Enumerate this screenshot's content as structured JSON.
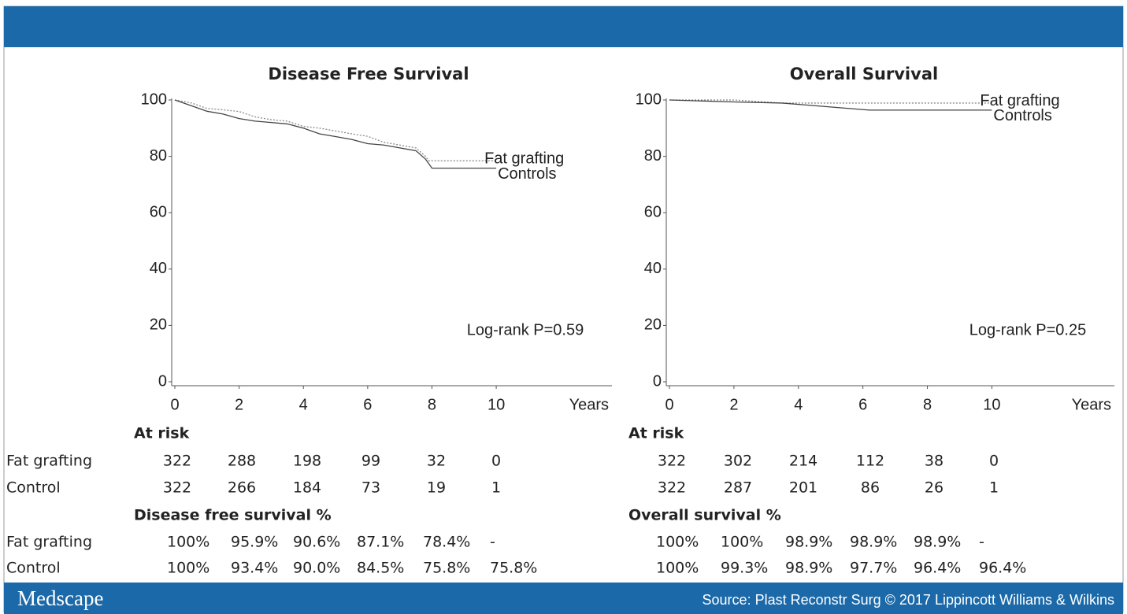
{
  "chart_data": [
    {
      "type": "line",
      "title": "Disease Free Survival",
      "xlabel": "Years",
      "xlim": [
        0,
        13.6
      ],
      "xticks": [
        0,
        2,
        4,
        6,
        8,
        10
      ],
      "ylim": [
        0,
        100
      ],
      "yticks": [
        0,
        20,
        40,
        60,
        80,
        100
      ],
      "annotation": "Log-rank  P=0.59",
      "series": [
        {
          "name": "Fat grafting",
          "color": "#8a8a8a",
          "style": "dotted",
          "x": [
            0,
            0.5,
            1,
            1.5,
            2,
            2.5,
            3,
            3.5,
            4,
            4.5,
            5,
            5.5,
            6,
            6.5,
            7,
            7.5,
            7.8,
            7.9,
            10
          ],
          "values": [
            100,
            99,
            97,
            96.5,
            95.9,
            94,
            93,
            92.5,
            90.6,
            90,
            89,
            88,
            87.1,
            85,
            84,
            83,
            80,
            78.4,
            78.4
          ]
        },
        {
          "name": "Controls",
          "color": "#444444",
          "style": "solid",
          "x": [
            0,
            0.5,
            1,
            1.5,
            2,
            2.5,
            3,
            3.5,
            4,
            4.5,
            5,
            5.5,
            6,
            6.5,
            7,
            7.5,
            7.8,
            8,
            10
          ],
          "values": [
            100,
            98,
            96,
            95,
            93.4,
            92.5,
            92,
            91.5,
            90,
            88,
            87,
            86,
            84.5,
            84,
            83,
            82,
            79,
            75.8,
            75.8
          ]
        }
      ]
    },
    {
      "type": "line",
      "title": "Overall Survival",
      "xlabel": "Years",
      "xlim": [
        0,
        13.8
      ],
      "xticks": [
        0,
        2,
        4,
        6,
        8,
        10
      ],
      "ylim": [
        0,
        100
      ],
      "yticks": [
        0,
        20,
        40,
        60,
        80,
        100
      ],
      "annotation": "Log-rank  P=0.25",
      "series": [
        {
          "name": "Fat grafting",
          "color": "#8a8a8a",
          "style": "dotted",
          "x": [
            0,
            2,
            3.5,
            6,
            8,
            10
          ],
          "values": [
            100,
            100,
            98.9,
            98.9,
            98.9,
            98.9
          ]
        },
        {
          "name": "Controls",
          "color": "#444444",
          "style": "solid",
          "x": [
            0,
            2,
            3.5,
            4.8,
            6.2,
            8,
            10
          ],
          "values": [
            100,
            99.3,
            98.9,
            97.7,
            96.4,
            96.4,
            96.4
          ]
        }
      ]
    }
  ],
  "row_labels": [
    "Fat grafting",
    "Control"
  ],
  "tables": [
    {
      "at_risk_title": "At risk",
      "at_risk": [
        [
          322,
          288,
          198,
          99,
          32,
          0
        ],
        [
          322,
          266,
          184,
          73,
          19,
          1
        ]
      ],
      "survival_title": "Disease free survival %",
      "survival": [
        [
          "100%",
          "95.9%",
          "90.6%",
          "87.1%",
          "78.4%",
          "-"
        ],
        [
          "100%",
          "93.4%",
          "90.0%",
          "84.5%",
          "75.8%",
          "75.8%"
        ]
      ]
    },
    {
      "at_risk_title": "At risk",
      "at_risk": [
        [
          322,
          302,
          214,
          112,
          38,
          0
        ],
        [
          322,
          287,
          201,
          86,
          26,
          1
        ]
      ],
      "survival_title": "Overall survival %",
      "survival": [
        [
          "100%",
          "100%",
          "98.9%",
          "98.9%",
          "98.9%",
          "-"
        ],
        [
          "100%",
          "99.3%",
          "98.9%",
          "97.7%",
          "96.4%",
          "96.4%"
        ]
      ]
    }
  ],
  "footer": {
    "brand": "Medscape",
    "source": "Source: Plast Reconstr Surg © 2017 Lippincott Williams & Wilkins"
  }
}
